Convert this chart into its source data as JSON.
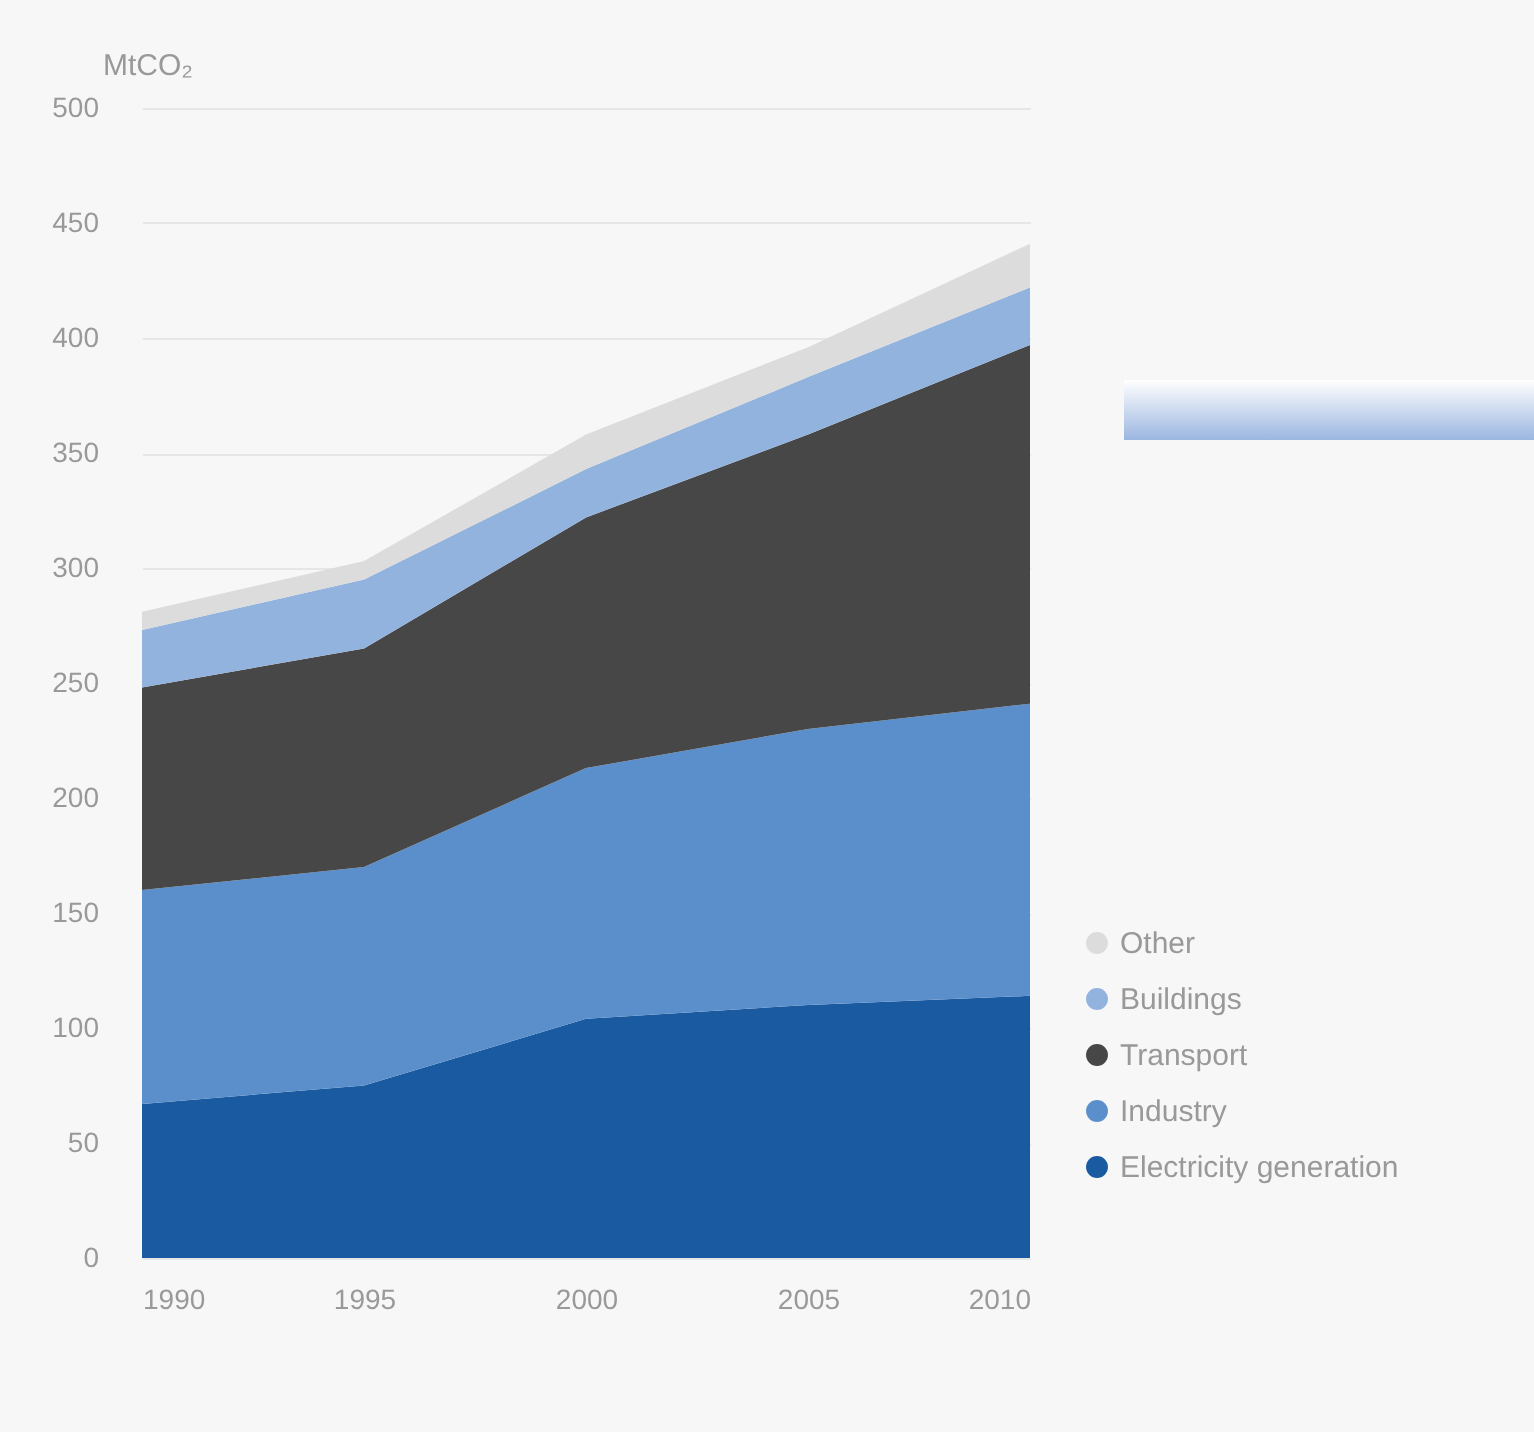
{
  "chart_data": {
    "type": "area",
    "stacked": true,
    "ylabel": "MtCO₂",
    "x": [
      1990,
      1995,
      2000,
      2005,
      2010
    ],
    "series": [
      {
        "name": "Electricity generation",
        "color": "#1a5aa0",
        "values": [
          67,
          75,
          104,
          110,
          114
        ]
      },
      {
        "name": "Industry",
        "color": "#5b8fcc",
        "values": [
          93,
          95,
          109,
          120,
          127
        ]
      },
      {
        "name": "Transport",
        "color": "#474747",
        "values": [
          88,
          95,
          109,
          128,
          156
        ]
      },
      {
        "name": "Buildings",
        "color": "#93b3df",
        "values": [
          25,
          30,
          21,
          25,
          25
        ]
      },
      {
        "name": "Other",
        "color": "#dcdcdc",
        "values": [
          8,
          8,
          15,
          13,
          19
        ]
      }
    ],
    "xlim": [
      1990,
      2010
    ],
    "xticks": [
      1990,
      1995,
      2000,
      2005,
      2010
    ],
    "ylim": [
      0,
      500
    ],
    "yticks": [
      0,
      50,
      100,
      150,
      200,
      250,
      300,
      350,
      400,
      450,
      500
    ],
    "grid": "y",
    "legend": "right"
  }
}
